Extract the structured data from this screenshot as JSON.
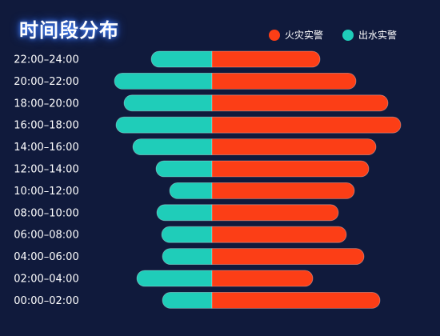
{
  "title": "时间段分布",
  "legend": {
    "fire_label": "火灾实警",
    "water_label": "出水实警"
  },
  "colors": {
    "fire": "#fc3e16",
    "water": "#1fcdb9",
    "background": "#101a3c"
  },
  "chart_data": {
    "type": "bar",
    "orientation": "horizontal-diverging",
    "categories": [
      "22:00–24:00",
      "20:00–22:00",
      "18:00–20:00",
      "16:00–18:00",
      "14:00–16:00",
      "12:00–14:00",
      "10:00–12:00",
      "08:00–10:00",
      "06:00–08:00",
      "04:00–06:00",
      "02:00–04:00",
      "00:00–02:00"
    ],
    "series": [
      {
        "name": "火灾实警",
        "direction": "right",
        "values": [
          135,
          180,
          220,
          236,
          205,
          196,
          178,
          158,
          168,
          190,
          126,
          210
        ]
      },
      {
        "name": "出水实警",
        "direction": "left",
        "values": [
          76,
          122,
          110,
          120,
          99,
          70,
          53,
          69,
          63,
          62,
          94,
          62
        ]
      }
    ],
    "grid": false,
    "legend_position": "top-right"
  }
}
